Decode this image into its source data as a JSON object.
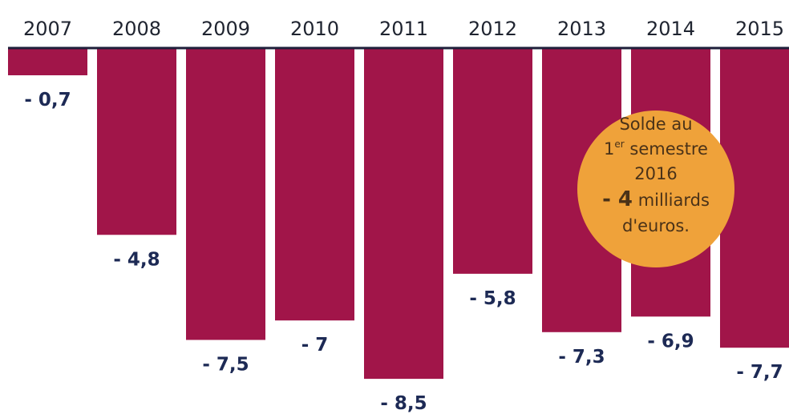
{
  "chart_data": {
    "type": "bar",
    "categories": [
      "2007",
      "2008",
      "2009",
      "2010",
      "2011",
      "2012",
      "2013",
      "2014",
      "2015"
    ],
    "values": [
      -0.7,
      -4.8,
      -7.5,
      -7,
      -8.5,
      -5.8,
      -7.3,
      -6.9,
      -7.7
    ],
    "value_labels": [
      "- 0,7",
      "- 4,8",
      "- 7,5",
      "- 7",
      "- 8,5",
      "- 5,8",
      "- 7,3",
      "- 6,9",
      "- 7,7"
    ],
    "title": "",
    "xlabel": "",
    "ylabel": "",
    "ylim": [
      -8.5,
      0
    ],
    "grid": false,
    "bar_color": "#a11549",
    "axis_color": "#1e1f3a",
    "annotation": {
      "line1": "Solde au",
      "line2_base": "1",
      "line2_sup": "er",
      "line2_rest": " semestre",
      "line3": "2016",
      "line4_strong": "- 4",
      "line4_rest": " milliards",
      "line5": "d'euros.",
      "color": "#efa23a"
    }
  }
}
